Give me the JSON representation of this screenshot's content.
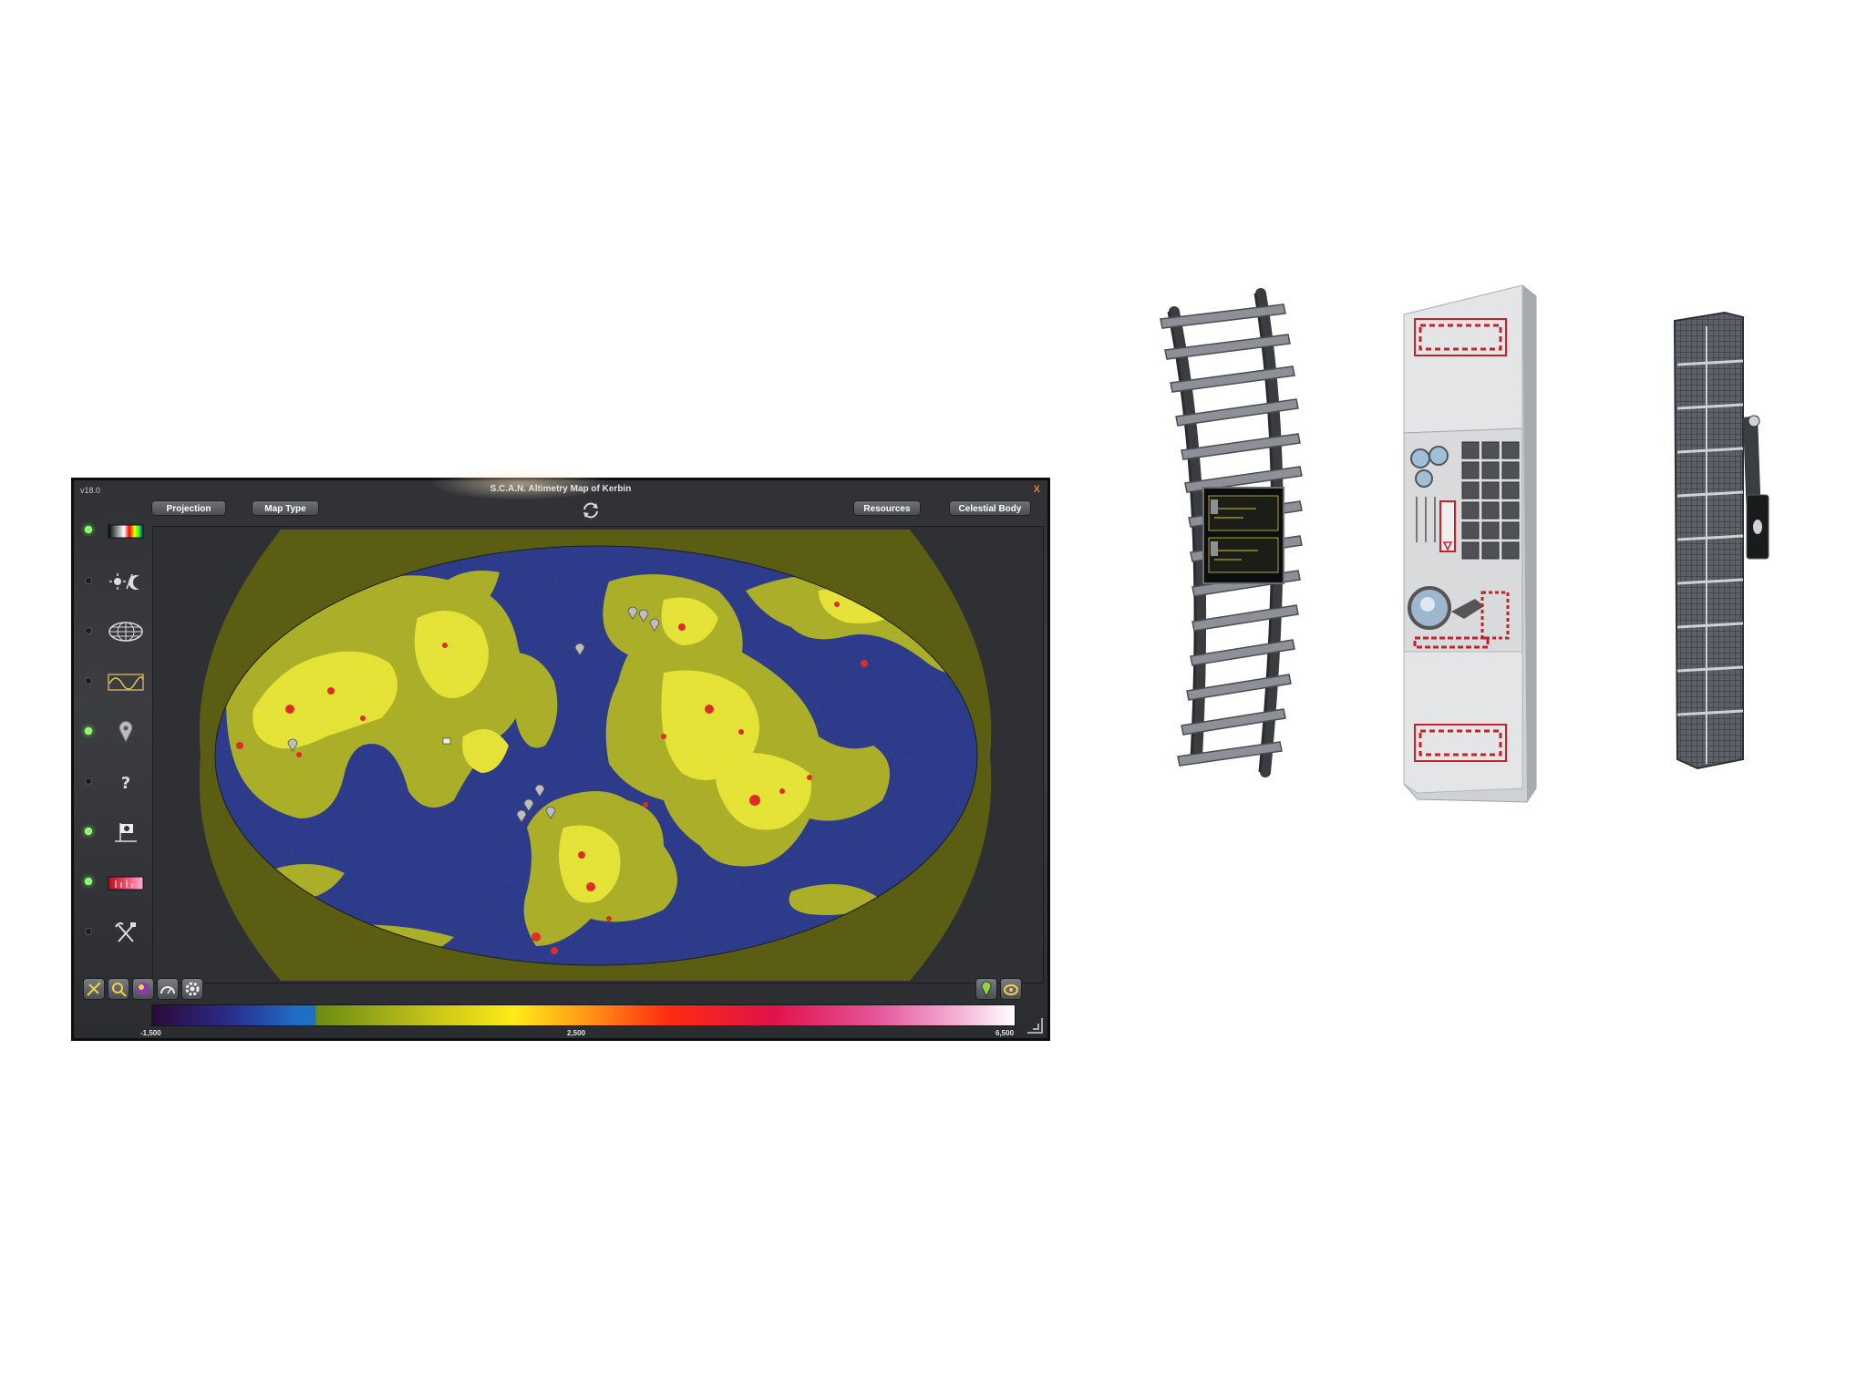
{
  "window": {
    "version": "v18.0",
    "title": "S.C.A.N. Altimetry Map of Kerbin",
    "close_glyph": "X"
  },
  "top_buttons": {
    "projection": "Projection",
    "map_type": "Map Type",
    "resources": "Resources",
    "celestial_body": "Celestial Body"
  },
  "sidebar": {
    "items": [
      {
        "icon": "color-palette-icon",
        "active": true
      },
      {
        "icon": "day-night-icon",
        "active": false
      },
      {
        "icon": "grid-overlay-icon",
        "active": false
      },
      {
        "icon": "orbit-path-icon",
        "active": false
      },
      {
        "icon": "waypoint-marker-icon",
        "active": true
      },
      {
        "icon": "anomaly-question-icon",
        "active": false
      },
      {
        "icon": "flag-icon",
        "active": true
      },
      {
        "icon": "resource-overlay-icon",
        "active": true
      },
      {
        "icon": "mining-tools-icon",
        "active": false
      }
    ]
  },
  "bottom_toolbar": {
    "left": [
      "scanner-toggle-icon",
      "zoom-map-icon",
      "color-scheme-icon",
      "altitude-gauge-icon",
      "settings-gear-icon"
    ],
    "right": [
      "waypoint-add-icon",
      "camera-toggle-icon"
    ]
  },
  "legend": {
    "min_label": "-1,500",
    "mid_label": "2,500",
    "max_label": "6,500",
    "min_value": -1500,
    "mid_value": 2500,
    "max_value": 6500
  },
  "colors": {
    "ocean": "#1f2f85",
    "lowland": "#a9ad1a",
    "highland": "#e8e62a",
    "peak": "#e0201a",
    "background_fill": "#5b5e12",
    "active_led": "#7dff5a"
  },
  "parts": [
    "rail-track-part",
    "control-panel-part",
    "solar-panel-part"
  ]
}
